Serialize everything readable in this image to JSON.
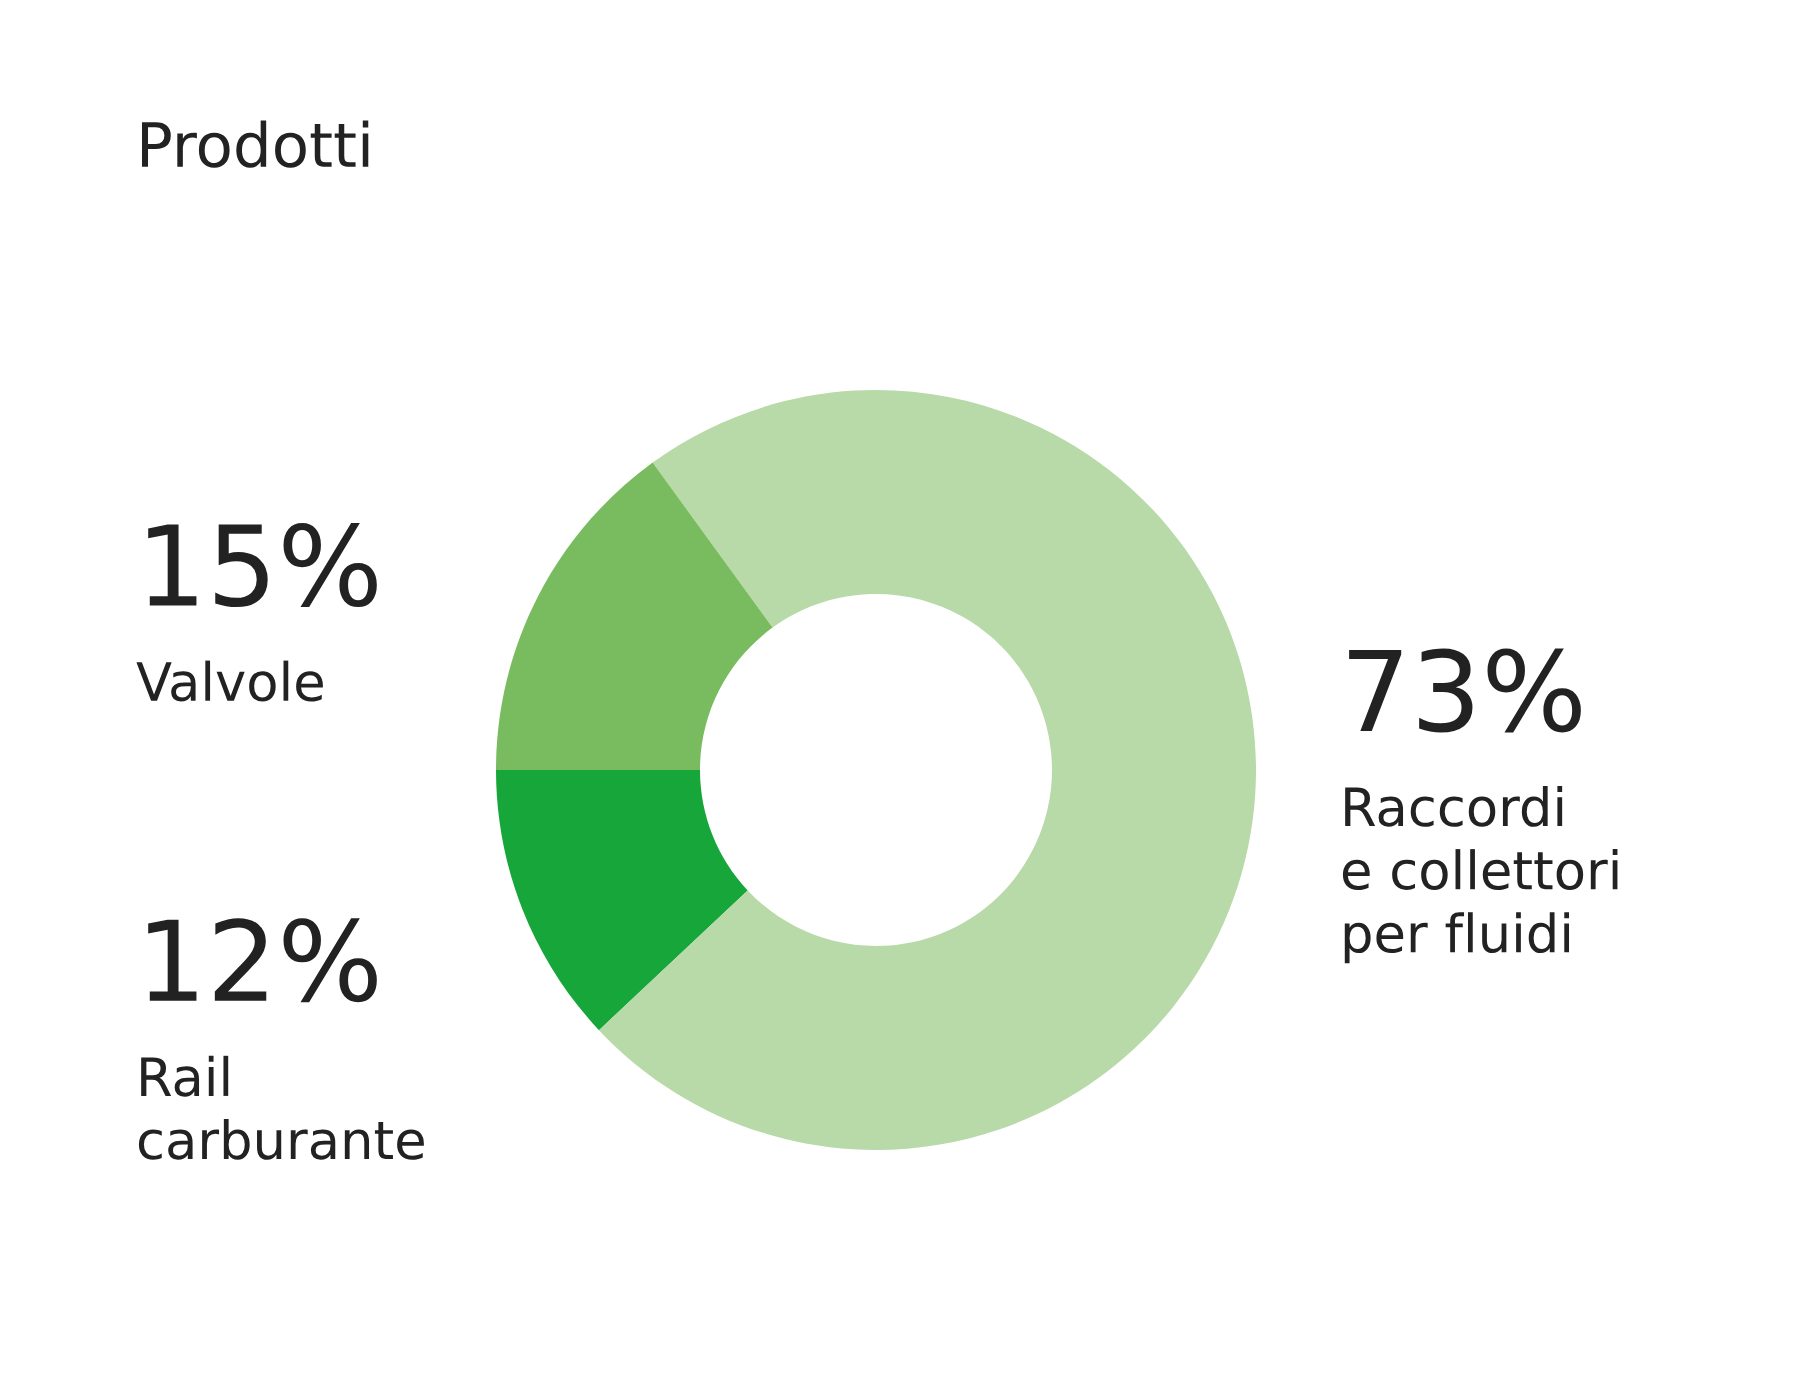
{
  "chart_data": {
    "type": "donut",
    "title": "Prodotti",
    "categories": [
      "Rail\ncarburante",
      "Raccordi\ne collettori\nper fluidi",
      "Valvole"
    ],
    "values": [
      12,
      73,
      15
    ],
    "value_labels": [
      "12%",
      "73%",
      "15%"
    ],
    "colors": [
      "#17a63a",
      "#b8d9a8",
      "#78bc5f"
    ],
    "legend": false
  }
}
